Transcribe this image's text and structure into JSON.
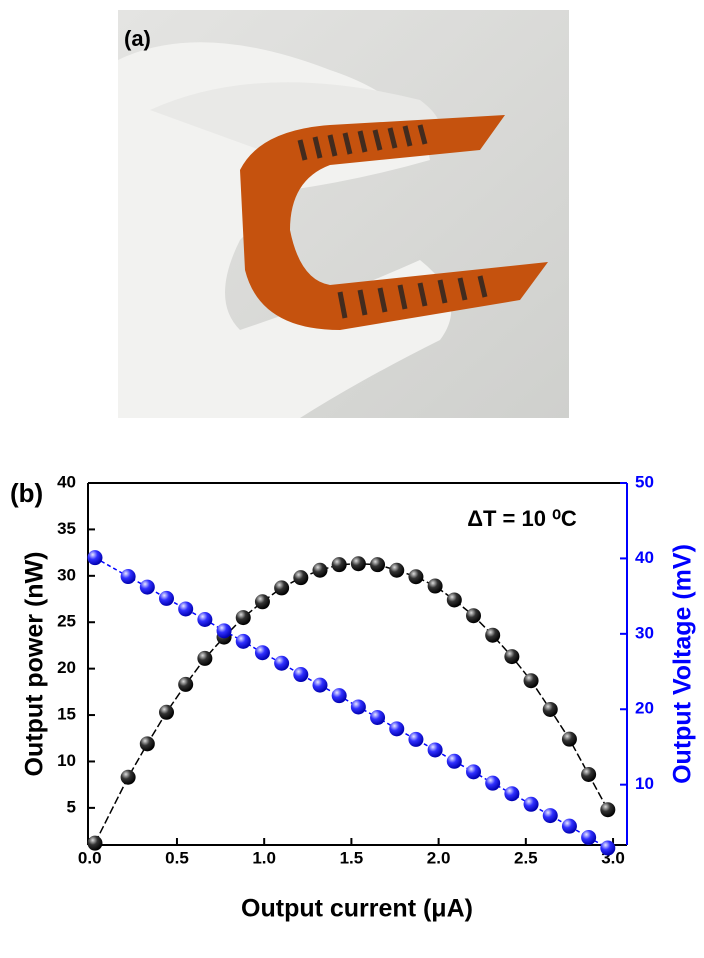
{
  "panel_a": {
    "label": "(a)"
  },
  "chart_data": {
    "type": "scatter",
    "panel_label": "(b)",
    "annotation": "ΔT = 10 ⁰C",
    "x_label": "Output current (μA)",
    "y_label": "Output power (nW)",
    "y2_label": "Output Voltage (mV)",
    "x": [
      0.03,
      0.22,
      0.33,
      0.44,
      0.55,
      0.66,
      0.77,
      0.88,
      0.99,
      1.1,
      1.21,
      1.32,
      1.43,
      1.54,
      1.65,
      1.76,
      1.87,
      1.98,
      2.09,
      2.2,
      2.31,
      2.42,
      2.53,
      2.64,
      2.75,
      2.86,
      2.97
    ],
    "series": [
      {
        "color": "#000000",
        "axis": "y",
        "values": [
          1.2,
          8.3,
          11.9,
          15.3,
          18.3,
          21.1,
          23.4,
          25.5,
          27.2,
          28.7,
          29.8,
          30.6,
          31.2,
          31.3,
          31.2,
          30.6,
          29.9,
          28.9,
          27.4,
          25.7,
          23.6,
          21.3,
          18.7,
          15.6,
          12.4,
          8.6,
          4.8
        ]
      },
      {
        "color": "#0000ff",
        "axis": "y2",
        "values": [
          40.1,
          37.6,
          36.2,
          34.7,
          33.3,
          31.9,
          30.4,
          29.0,
          27.5,
          26.1,
          24.6,
          23.2,
          21.8,
          20.3,
          18.9,
          17.4,
          16.0,
          14.6,
          13.1,
          11.7,
          10.2,
          8.8,
          7.4,
          5.9,
          4.5,
          3.0,
          1.6
        ]
      }
    ],
    "xlim": [
      -0.01,
      3.08
    ],
    "xticks": [
      {
        "value": 0,
        "label": "0.0"
      },
      0.5,
      {
        "value": 1,
        "label": "1.0"
      },
      1.5,
      {
        "value": 2,
        "label": "2.0"
      },
      2.5,
      {
        "value": 3,
        "label": "3.0"
      }
    ],
    "ylim": [
      1,
      40
    ],
    "yticks": [
      5,
      10,
      15,
      20,
      25,
      30,
      35,
      40
    ],
    "y2lim": [
      2,
      50
    ],
    "y2ticks": [
      10,
      20,
      30,
      40,
      50
    ],
    "y2_color": "#0000ff"
  }
}
